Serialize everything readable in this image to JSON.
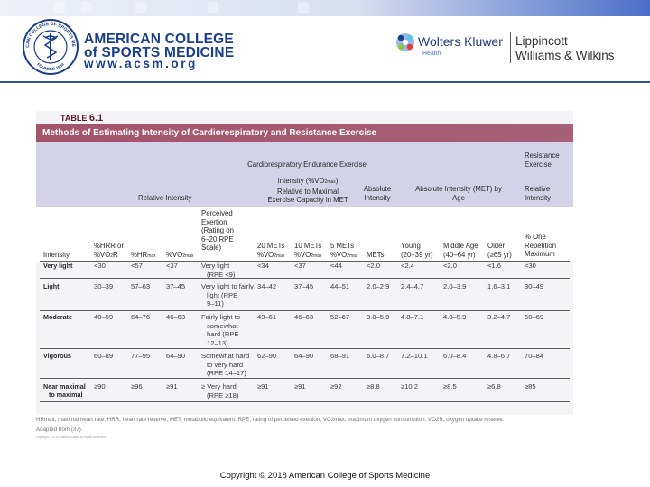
{
  "header": {
    "acsm_name_line1": "AMERICAN COLLEGE",
    "acsm_name_line2": "of SPORTS MEDICINE",
    "acsm_url": "www.acsm.org",
    "seal_text_top": "AMERICAN COLLEGE OF SPORTS MEDICINE",
    "seal_text_bottom": "FOUNDED 1954",
    "publisher_name": "Wolters Kluwer",
    "publisher_division": "Health",
    "imprint_line1": "Lippincott",
    "imprint_line2": "Williams & Wilkins",
    "bar_color": "#4a6ec9"
  },
  "table": {
    "label_prefix": "TABLE",
    "label_number": "6.1",
    "title": "Methods of Estimating Intensity of Cardiorespiratory and Resistance Exercise",
    "title_bg_color": "#a6566d",
    "group_headers": {
      "cre": "Cardiorespiratory Endurance Exercise",
      "relative_intensity": "Relative Intensity",
      "relative_vo2_a": "Intensity (%VO",
      "relative_vo2_sub": "2max",
      "relative_vo2_b": ")",
      "relative_vo2_c": "Relative to Maximal",
      "relative_vo2_d": "Exercise Capacity in MET",
      "absolute_intensity_a": "Absolute",
      "absolute_intensity_b": "Intensity",
      "absolute_met_a": "Absolute Intensity (MET) by",
      "absolute_met_b": "Age",
      "resistance_a": "Resistance",
      "resistance_b": "Exercise",
      "resistance_c": "Relative",
      "resistance_d": "Intensity"
    },
    "columns": {
      "intensity": "Intensity",
      "hrr_a": "%HRR or",
      "hrr_b": "%VO",
      "hrr_sub": "2",
      "hrr_c": "R",
      "hrmax_a": "%HR",
      "hrmax_sub": "max",
      "vo2max_a": "%VO",
      "vo2max_sub": "2max",
      "rpe_1": "Perceived",
      "rpe_2": "Exertion",
      "rpe_3": "(Rating on",
      "rpe_4": "6–20 RPE",
      "rpe_5": "Scale)",
      "met20_a": "20 METs",
      "met20_b": "%VO",
      "met20_sub": "2max",
      "met10_a": "10 METs",
      "met10_b": "%VO",
      "met10_sub": "2max",
      "met5_a": "5 METs",
      "met5_b": "%VO",
      "met5_sub": "2max",
      "mets": "METs",
      "young_a": "Young",
      "young_b": "(20–39 yr)",
      "middle_a": "Middle Age",
      "middle_b": "(40–64 yr)",
      "older_a": "Older",
      "older_b": "(≥65 yr)",
      "rep_a": "% One",
      "rep_b": "Repetition",
      "rep_c": "Maximum"
    },
    "rows": [
      {
        "intensity": "Very light",
        "hrr": "<30",
        "hrmax": "<57",
        "vo2max": "<37",
        "rpe": [
          "Very light",
          "(RPE <9)"
        ],
        "m20": "<34",
        "m10": "<37",
        "m5": "<44",
        "mets": "<2.0",
        "young": "<2.4",
        "middle": "<2.0",
        "older": "<1.6",
        "rm": "<30"
      },
      {
        "intensity": "Light",
        "hrr": "30–39",
        "hrmax": "57–63",
        "vo2max": "37–45",
        "rpe": [
          "Very light to fairly",
          "light (RPE",
          "9–11)"
        ],
        "m20": "34–42",
        "m10": "37–45",
        "m5": "44–51",
        "mets": "2.0–2.9",
        "young": "2.4–4.7",
        "middle": "2.0–3.9",
        "older": "1.6–3.1",
        "rm": "30–49"
      },
      {
        "intensity": "Moderate",
        "hrr": "40–59",
        "hrmax": "64–76",
        "vo2max": "46–63",
        "rpe": [
          "Fairly light to",
          "somewhat",
          "hard (RPE",
          "12–13)"
        ],
        "m20": "43–61",
        "m10": "46–63",
        "m5": "52–67",
        "mets": "3.0–5.9",
        "young": "4.8–7.1",
        "middle": "4.0–5.9",
        "older": "3.2–4.7",
        "rm": "50–69"
      },
      {
        "intensity": "Vigorous",
        "hrr": "60–89",
        "hrmax": "77–95",
        "vo2max": "64–90",
        "rpe": [
          "Somewhat hard",
          "to very hard",
          "(RPE 14–17)"
        ],
        "m20": "62–90",
        "m10": "64–90",
        "m5": "68–91",
        "mets": "6.0–8.7",
        "young": "7.2–10.1",
        "middle": "6.0–8.4",
        "older": "4.8–6.7",
        "rm": "70–84"
      },
      {
        "intensity": [
          "Near maximal",
          "to maximal"
        ],
        "hrr": "≥90",
        "hrmax": "≥96",
        "vo2max": "≥91",
        "rpe": [
          "≥ Very hard",
          "(RPE ≥18)"
        ],
        "m20": "≥91",
        "m10": "≥91",
        "m5": "≥92",
        "mets": "≥8.8",
        "young": "≥10.2",
        "middle": "≥8.5",
        "older": "≥6.8",
        "rm": "≥85"
      }
    ]
  },
  "footnote": {
    "text": "HRmax, maximal heart rate; HRR, heart rate reserve; MET, metabolic equivalent; RPE, rating of perceived exertion; VO2max, maximum oxygen consumption; VO2R, oxygen uptake reserve.",
    "source": "Adapted from (37).",
    "small_copy": "Copyright © 2018 Wolters Kluwer. All Rights Reserved."
  },
  "copyright": "Copyright © 2018 American College of Sports Medicine"
}
